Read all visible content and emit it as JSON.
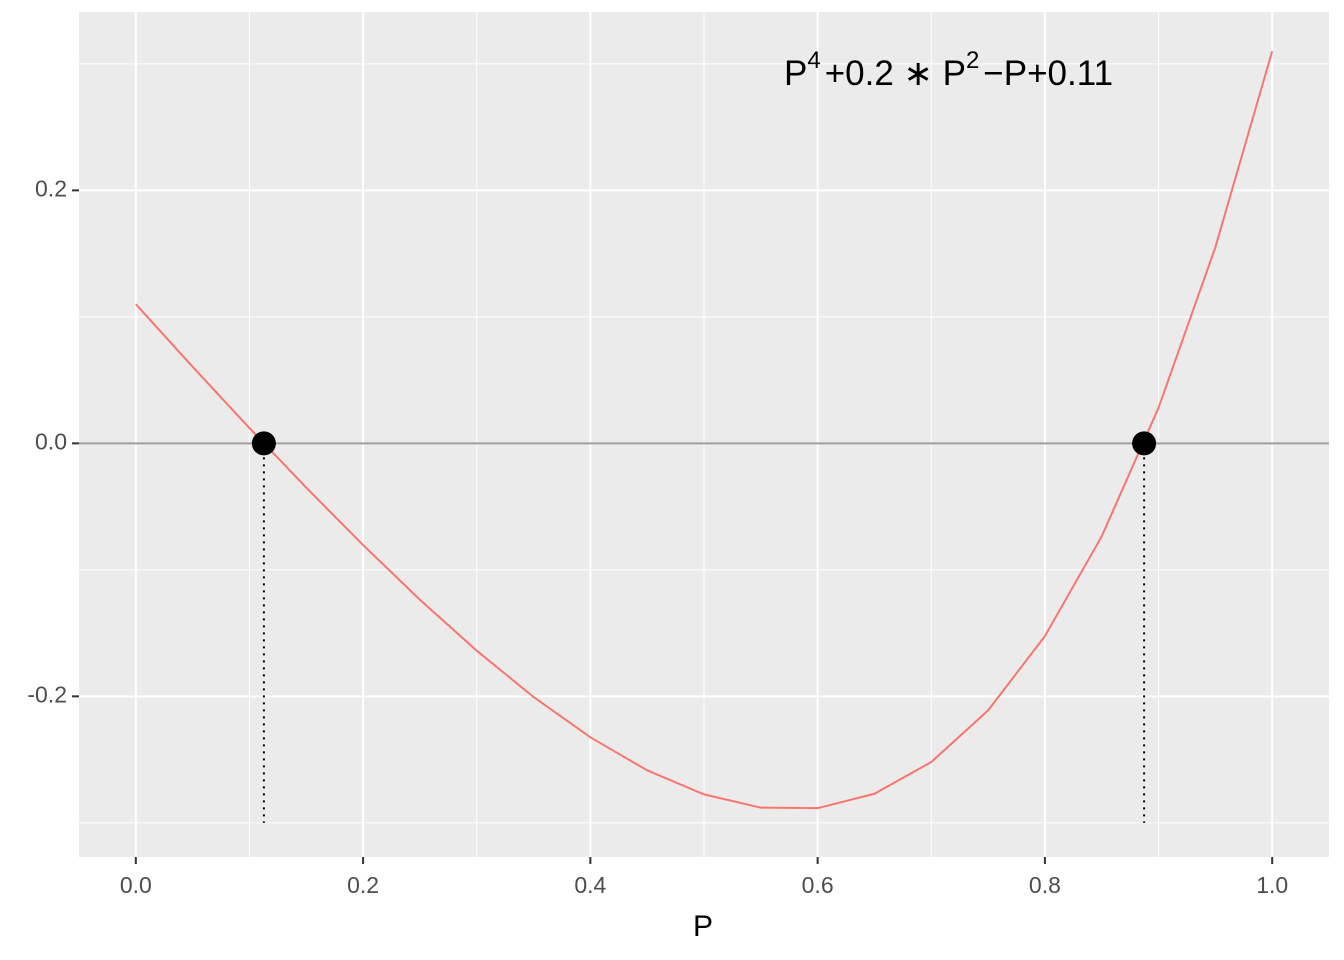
{
  "chart_data": {
    "type": "line",
    "x_label": "P",
    "annotation": [
      "P",
      "4",
      "+0.2 ∗ P",
      "2",
      "−P+0.11"
    ],
    "x": [
      0,
      0.05,
      0.1,
      0.15,
      0.2,
      0.25,
      0.3,
      0.35,
      0.4,
      0.45,
      0.5,
      0.55,
      0.6,
      0.65,
      0.7,
      0.75,
      0.8,
      0.85,
      0.9,
      0.95,
      1.0
    ],
    "series": [
      {
        "color": "#F8766D",
        "values": [
          0.11,
          0.0605,
          0.0121,
          -0.035,
          -0.0804,
          -0.1236,
          -0.1639,
          -0.2005,
          -0.2324,
          -0.2585,
          -0.2775,
          -0.288,
          -0.2884,
          -0.277,
          -0.2519,
          -0.2111,
          -0.1524,
          -0.0735,
          0.0281,
          0.155,
          0.31
        ]
      }
    ],
    "roots": {
      "x": [
        0.1127,
        0.8873
      ],
      "y": [
        0,
        0
      ],
      "color": "#000000",
      "drop_to": -0.3
    },
    "hline": 0,
    "xlim": [
      -0.05,
      1.05
    ],
    "ylim": [
      -0.327,
      0.341
    ],
    "xticks": [
      {
        "value": 0,
        "label": "0.0"
      },
      0.2,
      0.4,
      0.6,
      0.8,
      {
        "value": 1,
        "label": "1.0"
      }
    ],
    "yticks": [
      -0.2,
      {
        "value": 0,
        "label": "0.0"
      },
      0.2
    ],
    "grid": true
  }
}
